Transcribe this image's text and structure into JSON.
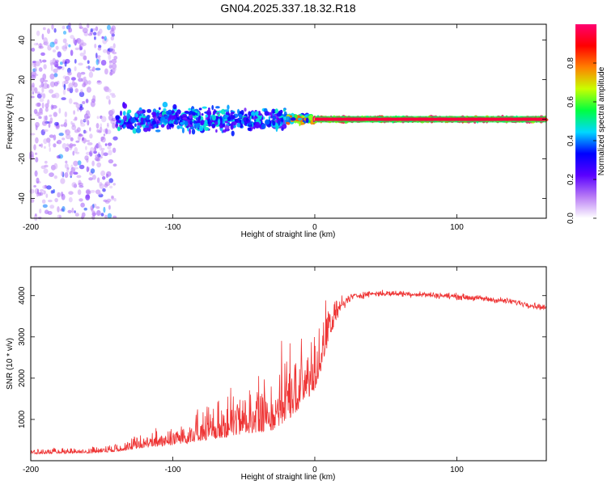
{
  "title": "GN04.2025.337.18.32.R18",
  "chart_data": [
    {
      "type": "heatmap",
      "xlabel": "Height of straight line (km)",
      "ylabel": "Frequency (Hz)",
      "xlim": [
        -200,
        163
      ],
      "ylim": [
        -50,
        48
      ],
      "xticks": [
        -200,
        -100,
        0,
        100
      ],
      "yticks": [
        -40,
        -20,
        0,
        20,
        40
      ],
      "colorbar": {
        "label": "Normalized spectral amplitude",
        "range": [
          0,
          1
        ],
        "ticks": [
          "0.0",
          "0.2",
          "0.4",
          "0.6",
          "0.8"
        ],
        "colors": [
          "#ffffff",
          "#b87bf5",
          "#5a00ff",
          "#0000ff",
          "#00d8ff",
          "#00ff40",
          "#c8ff00",
          "#ff8000",
          "#ff0000",
          "#ff0070"
        ]
      },
      "description_regions": [
        {
          "x_range": [
            -200,
            -140
          ],
          "freq_spread": 50,
          "amplitude": 0.15
        },
        {
          "x_range": [
            -140,
            -20
          ],
          "freq_spread": 8,
          "amplitude": 0.35
        },
        {
          "x_range": [
            -20,
            0
          ],
          "freq_spread": 3,
          "amplitude": 0.6
        },
        {
          "x_range": [
            0,
            163
          ],
          "freq_spread": 1,
          "amplitude": 0.95
        }
      ]
    },
    {
      "type": "line",
      "xlabel": "Height of straight line (km)",
      "ylabel": "SNR (10 * v/v)",
      "xlim": [
        -200,
        163
      ],
      "ylim": [
        0,
        4700
      ],
      "xticks": [
        -200,
        -100,
        0,
        100
      ],
      "yticks": [
        1000,
        2000,
        3000,
        4000
      ],
      "color": "#ee3333",
      "series": [
        {
          "name": "SNR",
          "x": [
            -200,
            -180,
            -160,
            -140,
            -120,
            -100,
            -80,
            -60,
            -40,
            -30,
            -20,
            -10,
            0,
            5,
            10,
            15,
            20,
            25,
            30,
            40,
            60,
            80,
            100,
            120,
            140,
            163
          ],
          "y": [
            180,
            200,
            210,
            260,
            380,
            480,
            620,
            780,
            950,
            1050,
            1300,
            1600,
            2000,
            2500,
            3100,
            3500,
            3800,
            3950,
            4000,
            4050,
            4050,
            4020,
            3980,
            3920,
            3850,
            3700
          ],
          "noise": [
            60,
            70,
            80,
            120,
            200,
            300,
            450,
            600,
            750,
            900,
            1000,
            1000,
            950,
            700,
            500,
            350,
            200,
            150,
            120,
            110,
            110,
            110,
            110,
            110,
            110,
            110
          ]
        }
      ]
    }
  ]
}
